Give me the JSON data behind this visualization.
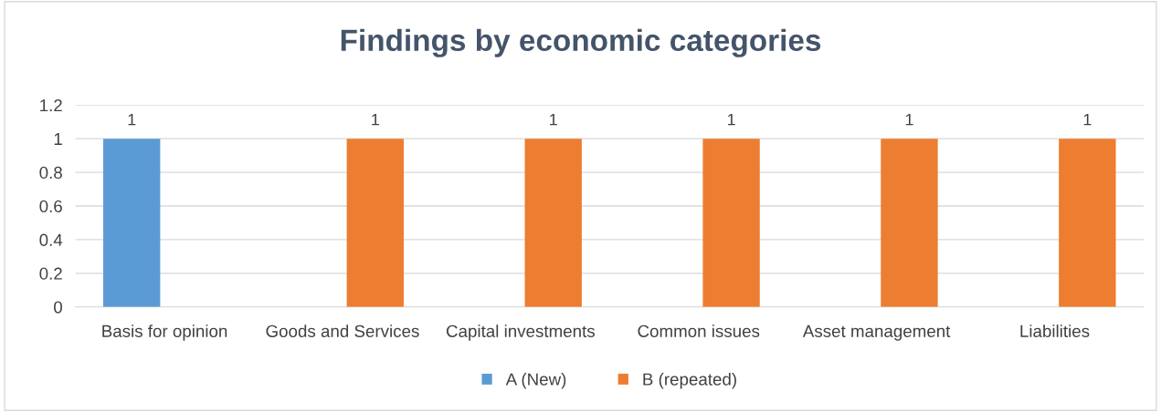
{
  "chart_data": {
    "type": "bar",
    "title": "Findings by economic categories",
    "categories": [
      "Basis for opinion",
      "Goods and Services",
      "Capital investments",
      "Common issues",
      "Asset management",
      "Liabilities"
    ],
    "series": [
      {
        "name": "A (New)",
        "color": "#5b9bd5",
        "values": [
          1,
          null,
          null,
          null,
          null,
          null
        ]
      },
      {
        "name": "B (repeated)",
        "color": "#ed7d31",
        "values": [
          null,
          1,
          1,
          1,
          1,
          1
        ]
      }
    ],
    "ylim": [
      0,
      1.2
    ],
    "yticks": [
      {
        "value": 0,
        "label": "0"
      },
      0.2,
      0.4,
      0.6,
      0.8,
      {
        "value": 1,
        "label": "1"
      },
      1.2
    ],
    "grid": "y",
    "legend": "bottom",
    "data_labels": true
  }
}
